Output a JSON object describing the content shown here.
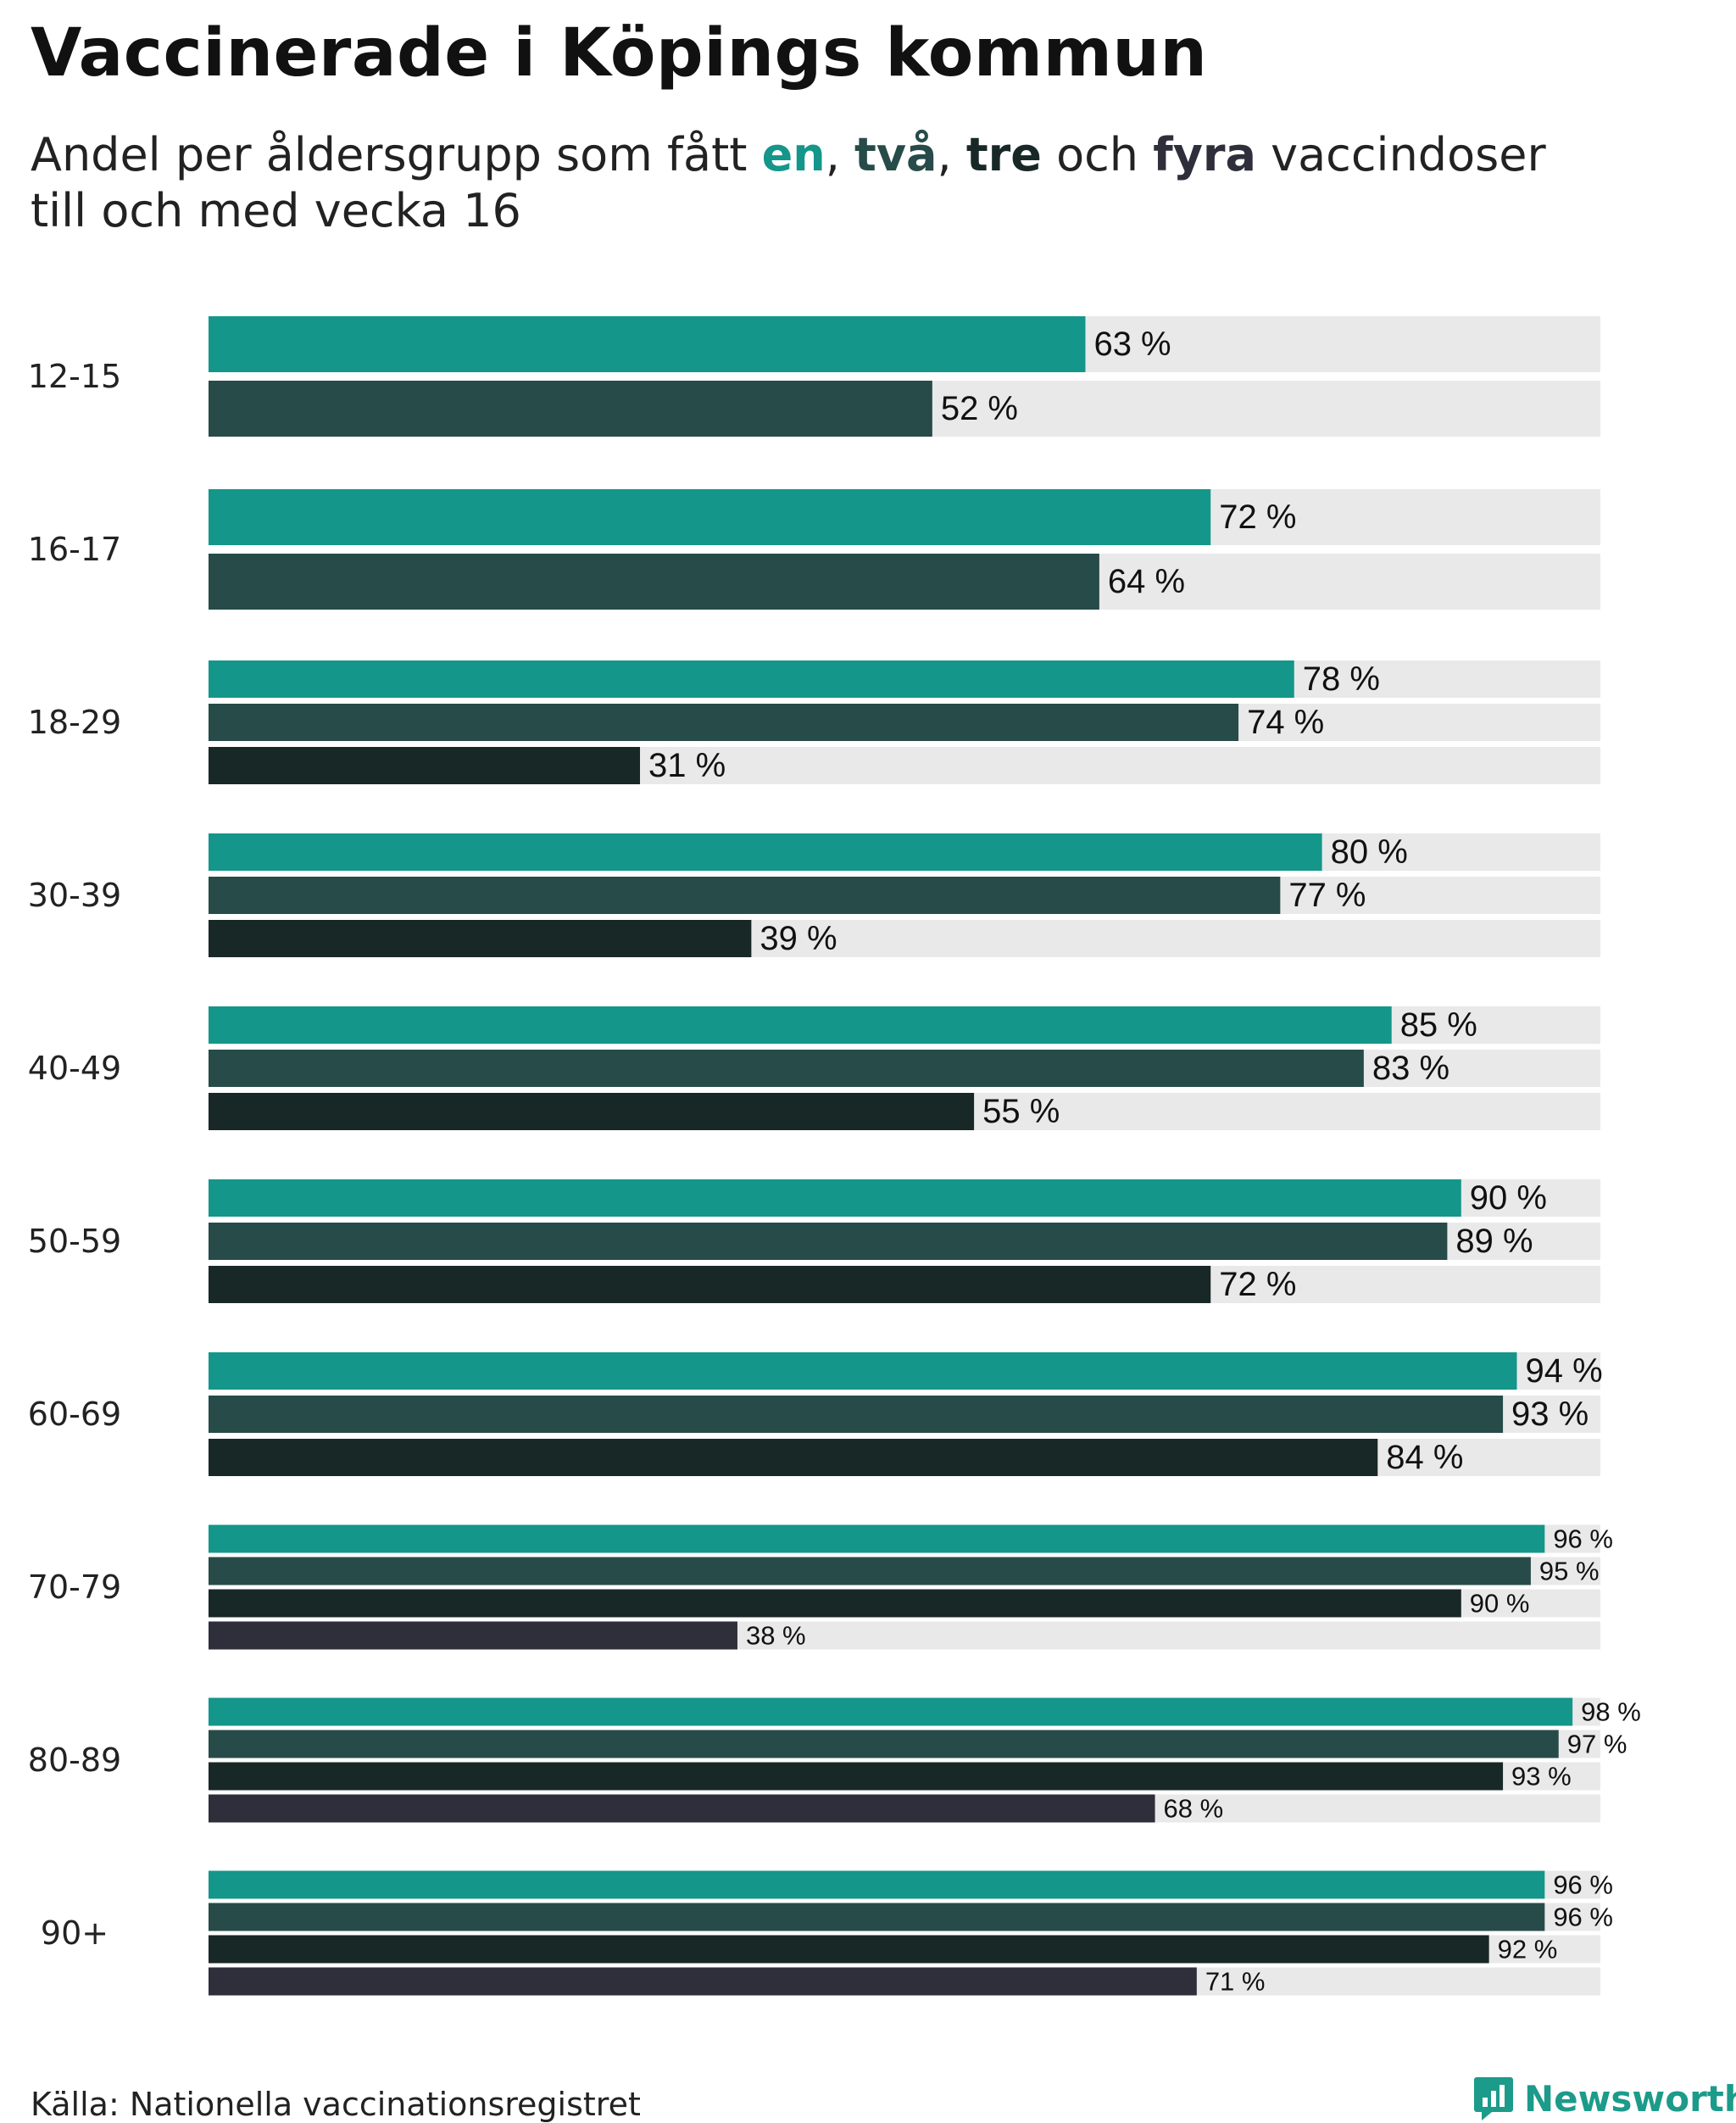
{
  "header": {
    "title": "Vaccinerade i Köpings kommun",
    "subtitle_prefix": "Andel per åldersgrupp som fått ",
    "kw_one": "en",
    "sep1": ", ",
    "kw_two": "två",
    "sep2": ", ",
    "kw_three": "tre",
    "sep3": " och ",
    "kw_four": "fyra",
    "subtitle_suffix": " vaccindoser",
    "subtitle_line2": "till och med vecka 16"
  },
  "footer": {
    "source": "Källa: Nationella vaccinationsregistret",
    "brand": "Newsworthy"
  },
  "colors": {
    "one_dose": "#14968a",
    "two_doses": "#274b49",
    "three_doses": "#182826",
    "four_doses": "#2f2e3b",
    "track": "#e9e9e9",
    "brand": "#1c9b8a"
  },
  "chart_data": {
    "type": "bar",
    "orientation": "horizontal",
    "unit": "%",
    "xlim": [
      0,
      100
    ],
    "grid": false,
    "value_label_format": "{v} %",
    "categories": [
      "12-15",
      "16-17",
      "18-29",
      "30-39",
      "40-49",
      "50-59",
      "60-69",
      "70-79",
      "80-89",
      "90+"
    ],
    "series": [
      {
        "name": "en",
        "values": [
          63,
          72,
          78,
          80,
          85,
          90,
          94,
          96,
          98,
          96
        ]
      },
      {
        "name": "två",
        "values": [
          52,
          64,
          74,
          77,
          83,
          89,
          93,
          95,
          97,
          96
        ]
      },
      {
        "name": "tre",
        "values": [
          null,
          null,
          31,
          39,
          55,
          72,
          84,
          90,
          93,
          92
        ]
      },
      {
        "name": "fyra",
        "values": [
          null,
          null,
          null,
          null,
          null,
          null,
          null,
          38,
          68,
          71
        ]
      }
    ]
  }
}
